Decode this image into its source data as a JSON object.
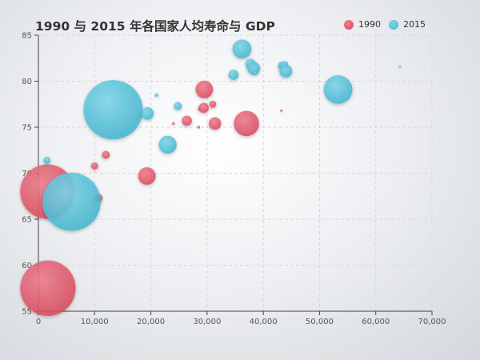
{
  "chart_data": {
    "type": "scatter",
    "title": "1990 与 2015 年各国家人均寿命与 GDP",
    "xlabel": "",
    "ylabel": "",
    "xlim": [
      0,
      70000
    ],
    "ylim": [
      55,
      85
    ],
    "xticks": [
      0,
      10000,
      20000,
      30000,
      40000,
      50000,
      60000,
      70000
    ],
    "xtick_labels": [
      "0",
      "10,000",
      "20,000",
      "30,000",
      "40,000",
      "50,000",
      "60,000",
      "70,000"
    ],
    "yticks": [
      55,
      60,
      65,
      70,
      75,
      80,
      85
    ],
    "ytick_labels": [
      "55",
      "60",
      "65",
      "70",
      "75",
      "80",
      "85"
    ],
    "grid": "dashed",
    "legend_position": "top-right",
    "series": [
      {
        "name": "1990",
        "color": "#e8576a",
        "points": [
          {
            "x": 1600,
            "y": 68.0,
            "size": 1160
          },
          {
            "x": 1700,
            "y": 57.5,
            "size": 1200
          },
          {
            "x": 10700,
            "y": 67.3,
            "size": 25
          },
          {
            "x": 10000,
            "y": 70.8,
            "size": 20
          },
          {
            "x": 12000,
            "y": 72.0,
            "size": 25
          },
          {
            "x": 19300,
            "y": 69.7,
            "size": 120
          },
          {
            "x": 24000,
            "y": 75.4,
            "size": 3
          },
          {
            "x": 26400,
            "y": 75.7,
            "size": 40
          },
          {
            "x": 28500,
            "y": 75.0,
            "size": 3
          },
          {
            "x": 28700,
            "y": 77.0,
            "size": 5
          },
          {
            "x": 29400,
            "y": 77.1,
            "size": 40
          },
          {
            "x": 29500,
            "y": 79.1,
            "size": 120
          },
          {
            "x": 31000,
            "y": 77.5,
            "size": 20
          },
          {
            "x": 31400,
            "y": 75.4,
            "size": 60
          },
          {
            "x": 37000,
            "y": 75.4,
            "size": 250
          },
          {
            "x": 43200,
            "y": 76.8,
            "size": 2
          }
        ]
      },
      {
        "name": "2015",
        "color": "#4fc3dc",
        "points": [
          {
            "x": 1500,
            "y": 71.4,
            "size": 20
          },
          {
            "x": 5900,
            "y": 66.9,
            "size": 1320
          },
          {
            "x": 13300,
            "y": 76.9,
            "size": 1371
          },
          {
            "x": 19400,
            "y": 76.5,
            "size": 60
          },
          {
            "x": 21000,
            "y": 78.5,
            "size": 5
          },
          {
            "x": 23000,
            "y": 73.1,
            "size": 125
          },
          {
            "x": 24800,
            "y": 77.3,
            "size": 25
          },
          {
            "x": 34700,
            "y": 80.7,
            "size": 40
          },
          {
            "x": 36200,
            "y": 83.5,
            "size": 140
          },
          {
            "x": 37700,
            "y": 81.9,
            "size": 40
          },
          {
            "x": 38300,
            "y": 81.4,
            "size": 65
          },
          {
            "x": 38600,
            "y": 80.9,
            "size": 4
          },
          {
            "x": 43300,
            "y": 81.7,
            "size": 25
          },
          {
            "x": 43800,
            "y": 81.8,
            "size": 20
          },
          {
            "x": 44000,
            "y": 81.1,
            "size": 65
          },
          {
            "x": 53300,
            "y": 79.1,
            "size": 320
          },
          {
            "x": 64300,
            "y": 81.6,
            "size": 2
          }
        ]
      }
    ]
  }
}
